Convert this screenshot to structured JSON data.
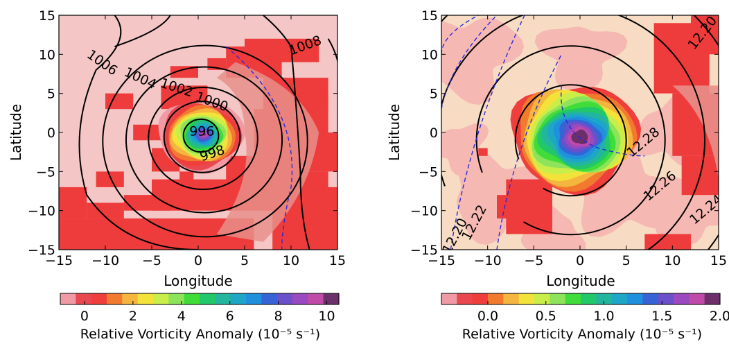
{
  "chart_data": [
    {
      "type": "heatmap",
      "panel": "left",
      "xlabel": "Longitude",
      "ylabel": "Latitude",
      "xlim": [
        -15,
        15
      ],
      "ylim": [
        -15,
        15
      ],
      "xticks": [
        -15,
        -10,
        -5,
        0,
        5,
        10,
        15
      ],
      "yticks": [
        15,
        10,
        5,
        0,
        -5,
        -10,
        -15
      ],
      "xtick_labels": [
        "−15",
        "−10",
        "−5",
        "0",
        "5",
        "10",
        "15"
      ],
      "ytick_labels": [
        "15",
        "10",
        "5",
        "0",
        "−5",
        "−10",
        "−15"
      ],
      "colorbar": {
        "label": "Relative Vorticity Anomaly (10⁻⁵ s⁻¹)",
        "ticks": [
          0,
          2,
          4,
          6,
          8,
          10
        ],
        "tick_labels": [
          "0",
          "2",
          "4",
          "6",
          "8",
          "10"
        ],
        "min": -1,
        "max": 10.5
      },
      "contours": [
        {
          "level": 996,
          "label": "996",
          "radius": 1.8
        },
        {
          "level": 998,
          "label": "998",
          "radius": 3.9
        },
        {
          "level": 1000,
          "label": "1000",
          "radius": 5.6
        },
        {
          "level": 1002,
          "label": "1002",
          "radius": 8.0
        },
        {
          "level": 1004,
          "label": "1004",
          "radius": 10.5
        },
        {
          "level": 1006,
          "label": "1006",
          "radius": 13.2
        },
        {
          "level": 1008,
          "label": "1008",
          "radius": 13.5
        }
      ],
      "center": [
        0.3,
        -0.4
      ],
      "center_value": 10
    },
    {
      "type": "heatmap",
      "panel": "right",
      "xlabel": "Longitude",
      "ylabel": "Latitude",
      "xlim": [
        -15,
        15
      ],
      "ylim": [
        -15,
        15
      ],
      "xticks": [
        -15,
        -10,
        -5,
        0,
        5,
        10,
        15
      ],
      "yticks": [
        15,
        10,
        5,
        0,
        -5,
        -10,
        -15
      ],
      "xtick_labels": [
        "−15",
        "−10",
        "−5",
        "0",
        "5",
        "10",
        "15"
      ],
      "ytick_labels": [
        "15",
        "10",
        "5",
        "0",
        "−5",
        "−10",
        "−15"
      ],
      "colorbar": {
        "label": "Relative Vorticity Anomaly (10⁻⁵ s⁻¹)",
        "ticks": [
          0.0,
          0.5,
          1.0,
          1.5,
          2.0
        ],
        "tick_labels": [
          "0.0",
          "0.5",
          "1.0",
          "1.5",
          "2.0"
        ],
        "min": -0.4,
        "max": 2.0
      },
      "contours": [
        {
          "level": 12.28,
          "label": "12.28"
        },
        {
          "level": 12.26,
          "label": "12.26"
        },
        {
          "level": 12.24,
          "label": "12.24"
        },
        {
          "level": 12.22,
          "label": "12.22"
        },
        {
          "level": 12.2,
          "label": "12.20"
        }
      ],
      "center": [
        0.0,
        -0.3
      ],
      "center_value": 2.0
    }
  ]
}
